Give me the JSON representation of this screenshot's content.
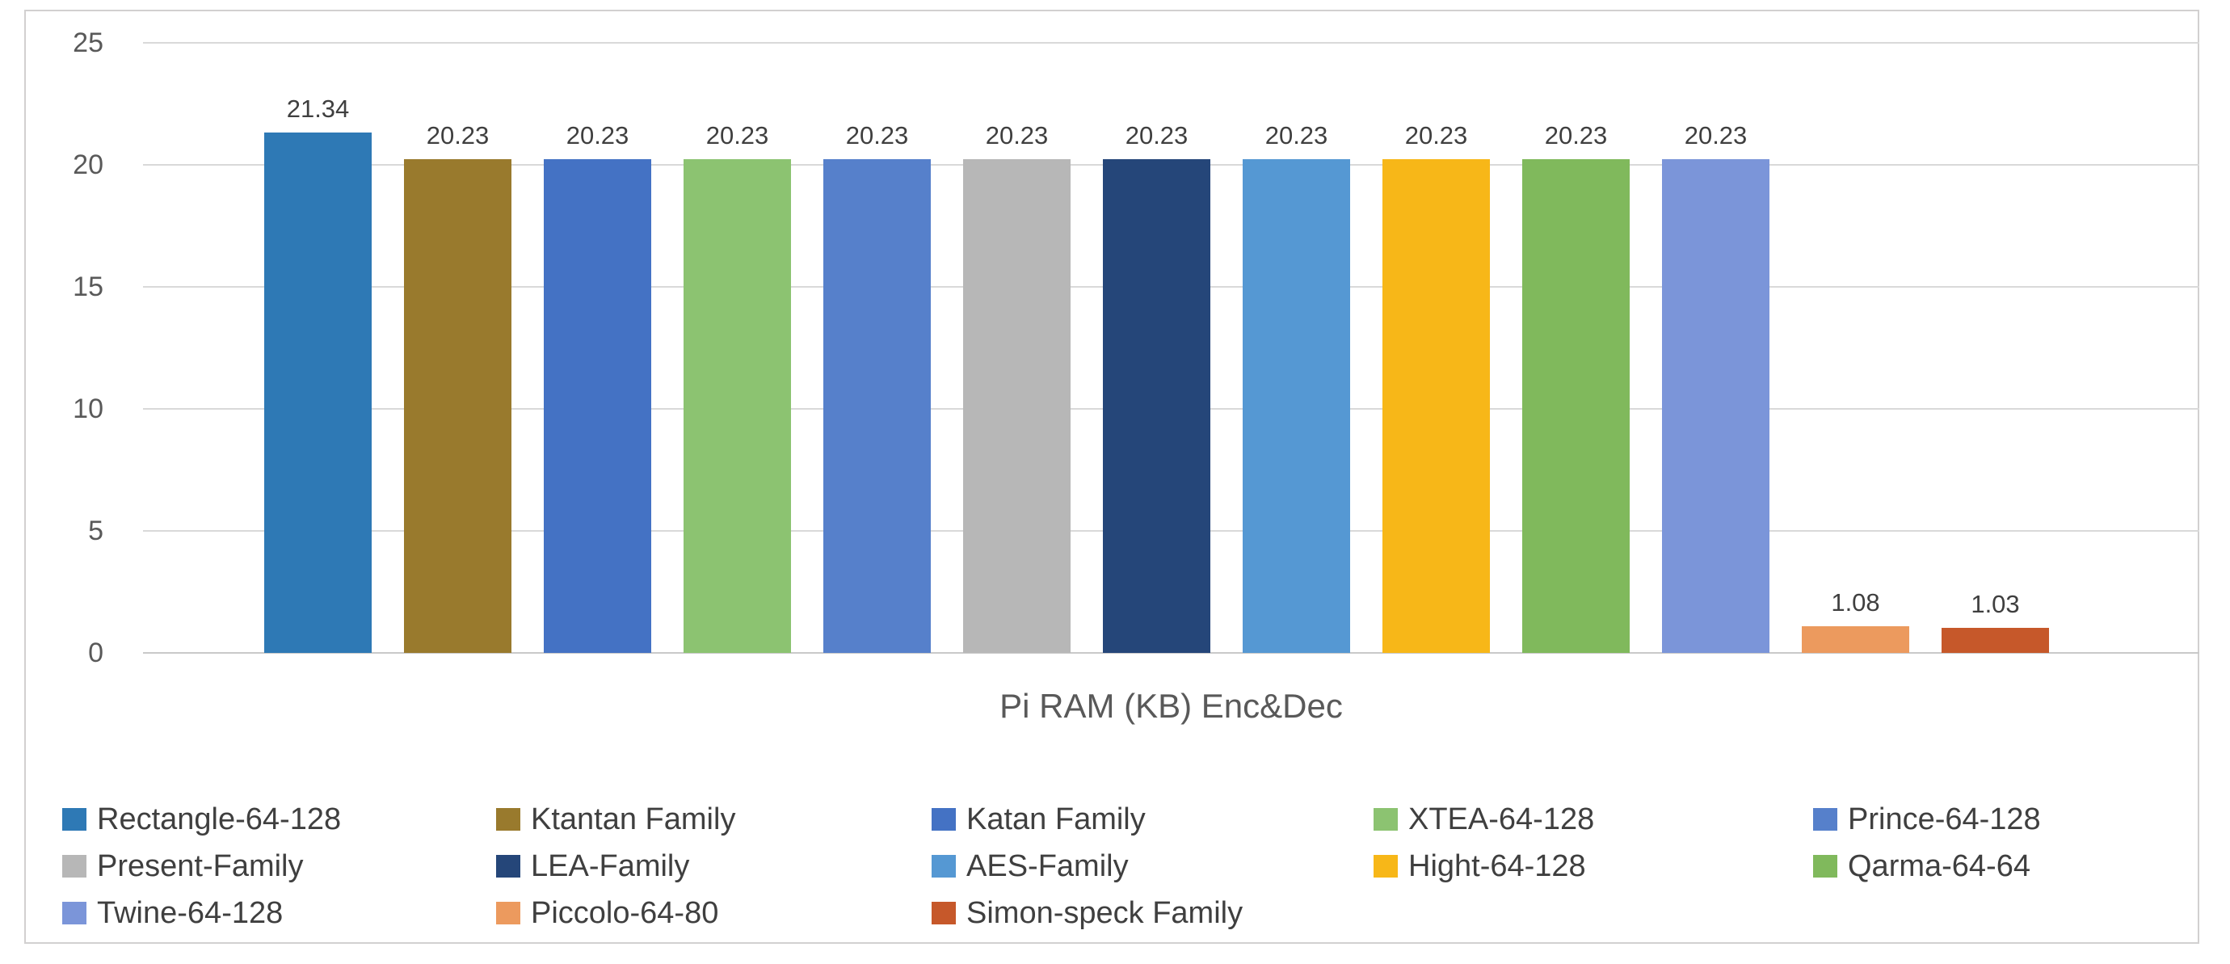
{
  "chart_data": {
    "type": "bar",
    "title": "Pi RAM (KB) Enc&Dec",
    "categories": [
      "Rectangle-64-128",
      "Ktantan Family",
      "Katan Family",
      "XTEA-64-128",
      "Prince-64-128",
      "Present-Family",
      "LEA-Family",
      "AES-Family",
      "Hight-64-128",
      "Qarma-64-64",
      "Twine-64-128",
      "Piccolo-64-80",
      "Simon-speck Family"
    ],
    "values": [
      21.34,
      20.23,
      20.23,
      20.23,
      20.23,
      20.23,
      20.23,
      20.23,
      20.23,
      20.23,
      20.23,
      1.08,
      1.03
    ],
    "data_labels": [
      "21.34",
      "20.23",
      "20.23",
      "20.23",
      "20.23",
      "20.23",
      "20.23",
      "20.23",
      "20.23",
      "20.23",
      "20.23",
      "1.08",
      "1.03"
    ],
    "colors": [
      "#2E79B5",
      "#997A2D",
      "#4472C4",
      "#8CC371",
      "#5680CB",
      "#B7B7B7",
      "#254679",
      "#5598D3",
      "#F7B718",
      "#80B95C",
      "#7B95D9",
      "#EC9A5E",
      "#C6582A"
    ],
    "xlabel": "Pi RAM (KB) Enc&Dec",
    "ylabel": "",
    "y_ticks": [
      25,
      20,
      15,
      10,
      5,
      0
    ],
    "ylim": [
      0,
      25
    ],
    "grid": true,
    "legend_position": "bottom",
    "legend_columns": 5
  },
  "styles": {
    "tick_color": "#595959",
    "value_label_color": "#3F3F3F",
    "legend_text_color": "#3F3F3F",
    "grid_color": "#D9D9D9",
    "frame_border_color": "#D2D0D0",
    "background": "#FFFFFF"
  }
}
